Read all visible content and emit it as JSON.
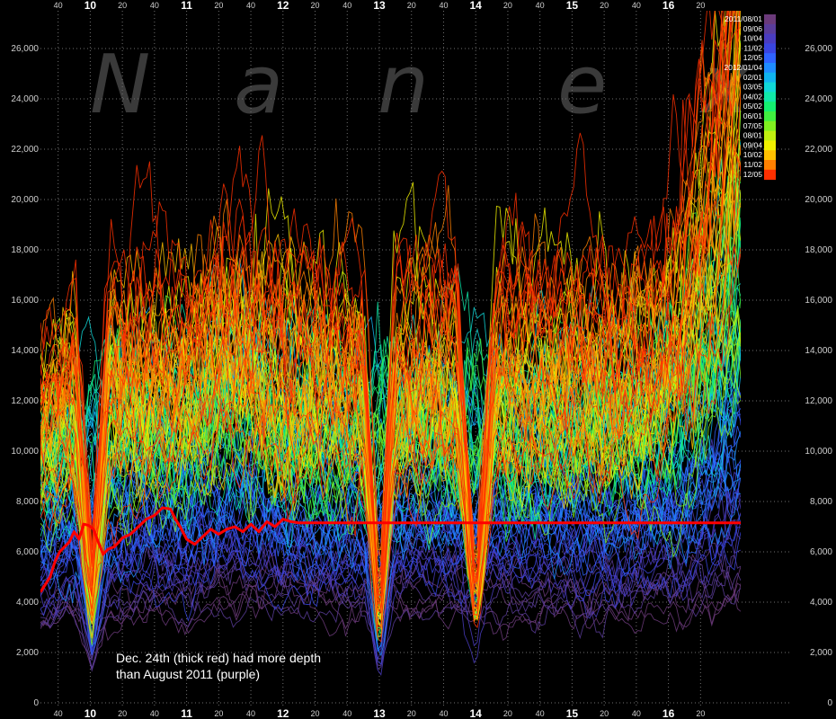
{
  "chart_data": {
    "type": "line",
    "title": "",
    "xlabel": "",
    "ylabel": "",
    "ylim": [
      0,
      27500
    ],
    "y_ticks": [
      0,
      2000,
      4000,
      6000,
      8000,
      10000,
      12000,
      14000,
      16000,
      18000,
      20000,
      22000,
      24000,
      26000
    ],
    "y_tick_labels": [
      "0",
      "2,000",
      "4,000",
      "6,000",
      "8,000",
      "10,000",
      "12,000",
      "14,000",
      "16,000",
      "18,000",
      "20,000",
      "22,000",
      "24,000",
      "26,000"
    ],
    "x_range_minutes": [
      569,
      1005
    ],
    "x_ticks_major": [
      {
        "minute": 600,
        "label": "10"
      },
      {
        "minute": 660,
        "label": "11"
      },
      {
        "minute": 720,
        "label": "12"
      },
      {
        "minute": 780,
        "label": "13"
      },
      {
        "minute": 840,
        "label": "14"
      },
      {
        "minute": 900,
        "label": "15"
      },
      {
        "minute": 960,
        "label": "16"
      }
    ],
    "x_ticks_minor": [
      {
        "minute": 580,
        "label": "40"
      },
      {
        "minute": 620,
        "label": "20"
      },
      {
        "minute": 640,
        "label": "40"
      },
      {
        "minute": 680,
        "label": "20"
      },
      {
        "minute": 700,
        "label": "40"
      },
      {
        "minute": 740,
        "label": "20"
      },
      {
        "minute": 760,
        "label": "40"
      },
      {
        "minute": 800,
        "label": "20"
      },
      {
        "minute": 820,
        "label": "40"
      },
      {
        "minute": 860,
        "label": "20"
      },
      {
        "minute": 880,
        "label": "40"
      },
      {
        "minute": 920,
        "label": "20"
      },
      {
        "minute": 940,
        "label": "40"
      },
      {
        "minute": 980,
        "label": "20"
      }
    ],
    "grid": true,
    "legend": {
      "placement": "top-right",
      "entries": [
        {
          "label": "2011/08/01",
          "color": "#6b3a7a"
        },
        {
          "label": "09/06",
          "color": "#5a3c9a"
        },
        {
          "label": "10/04",
          "color": "#4a3cc0"
        },
        {
          "label": "11/02",
          "color": "#3a45e0"
        },
        {
          "label": "12/05",
          "color": "#2f63ff"
        },
        {
          "label": "2012/01/04",
          "color": "#1e8cff"
        },
        {
          "label": "02/01",
          "color": "#10b4f0"
        },
        {
          "label": "03/05",
          "color": "#10d8d8"
        },
        {
          "label": "04/02",
          "color": "#10e8a8"
        },
        {
          "label": "05/02",
          "color": "#14f070"
        },
        {
          "label": "06/01",
          "color": "#40f040"
        },
        {
          "label": "07/05",
          "color": "#80f020"
        },
        {
          "label": "08/01",
          "color": "#c0f010"
        },
        {
          "label": "09/04",
          "color": "#f0f000"
        },
        {
          "label": "10/02",
          "color": "#ffc000"
        },
        {
          "label": "11/02",
          "color": "#ff8000"
        },
        {
          "label": "12/05",
          "color": "#ff3000"
        }
      ]
    },
    "highlight_series": {
      "color": "#ff0000",
      "points": [
        [
          569,
          4400
        ],
        [
          572,
          4700
        ],
        [
          575,
          5000
        ],
        [
          578,
          5600
        ],
        [
          581,
          6000
        ],
        [
          584,
          6200
        ],
        [
          587,
          6400
        ],
        [
          590,
          6800
        ],
        [
          593,
          6500
        ],
        [
          596,
          7100
        ],
        [
          599,
          7050
        ],
        [
          602,
          6900
        ],
        [
          605,
          6400
        ],
        [
          608,
          5900
        ],
        [
          611,
          6100
        ],
        [
          615,
          6200
        ],
        [
          620,
          6550
        ],
        [
          625,
          6700
        ],
        [
          630,
          7000
        ],
        [
          635,
          7300
        ],
        [
          640,
          7450
        ],
        [
          645,
          7750
        ],
        [
          650,
          7700
        ],
        [
          653,
          7300
        ],
        [
          656,
          7000
        ],
        [
          660,
          6500
        ],
        [
          665,
          6300
        ],
        [
          670,
          6600
        ],
        [
          675,
          6900
        ],
        [
          680,
          6700
        ],
        [
          685,
          6900
        ],
        [
          690,
          7000
        ],
        [
          695,
          6800
        ],
        [
          700,
          7100
        ],
        [
          705,
          6800
        ],
        [
          710,
          7200
        ],
        [
          715,
          7000
        ],
        [
          720,
          7300
        ],
        [
          725,
          7200
        ],
        [
          730,
          7150
        ],
        [
          735,
          7150
        ],
        [
          1005,
          7150
        ]
      ]
    },
    "annotation": {
      "lines": [
        "Dec. 24th (thick red) had more depth",
        "than August 2011 (purple)"
      ]
    },
    "watermark": [
      "N",
      "a",
      "n",
      "e",
      "x"
    ]
  }
}
